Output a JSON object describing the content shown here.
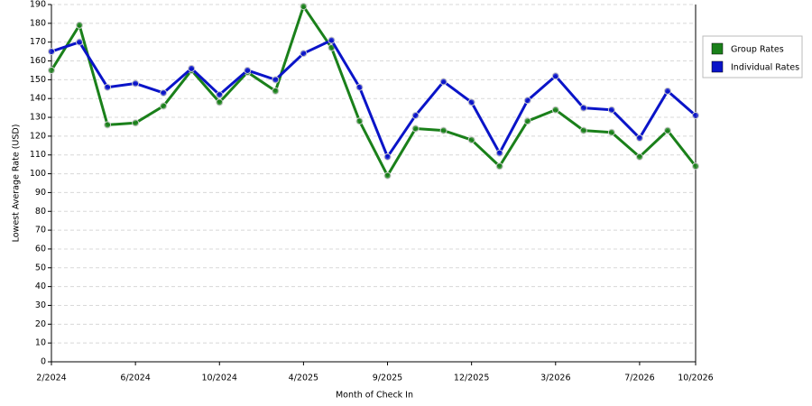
{
  "chart_data": {
    "type": "line",
    "x_label": "Month of Check In",
    "y_label": "Lowest Average Rate (USD)",
    "categories": [
      "2/2024",
      null,
      null,
      "6/2024",
      null,
      null,
      "10/2024",
      null,
      null,
      "4/2025",
      null,
      null,
      "9/2025",
      null,
      null,
      "12/2025",
      null,
      null,
      "3/2026",
      null,
      null,
      "7/2026",
      null,
      "10/2026"
    ],
    "series": [
      {
        "name": "Group Rates",
        "color": "#1a801a",
        "values": [
          155,
          179,
          126,
          127,
          136,
          155,
          138,
          154,
          144,
          189,
          167,
          128,
          99,
          124,
          123,
          118,
          104,
          128,
          134,
          123,
          122,
          109,
          123,
          104
        ]
      },
      {
        "name": "Individual Rates",
        "color": "#0a14c8",
        "values": [
          165,
          170,
          146,
          148,
          143,
          156,
          142,
          155,
          150,
          164,
          171,
          146,
          109,
          131,
          149,
          138,
          111,
          139,
          152,
          135,
          134,
          119,
          144,
          131
        ]
      }
    ],
    "ylim": [
      0,
      190
    ],
    "yticks": [
      0,
      10,
      20,
      30,
      40,
      50,
      60,
      70,
      80,
      90,
      100,
      110,
      120,
      130,
      140,
      150,
      160,
      170,
      180,
      190
    ],
    "grid": true,
    "legend": "right"
  }
}
